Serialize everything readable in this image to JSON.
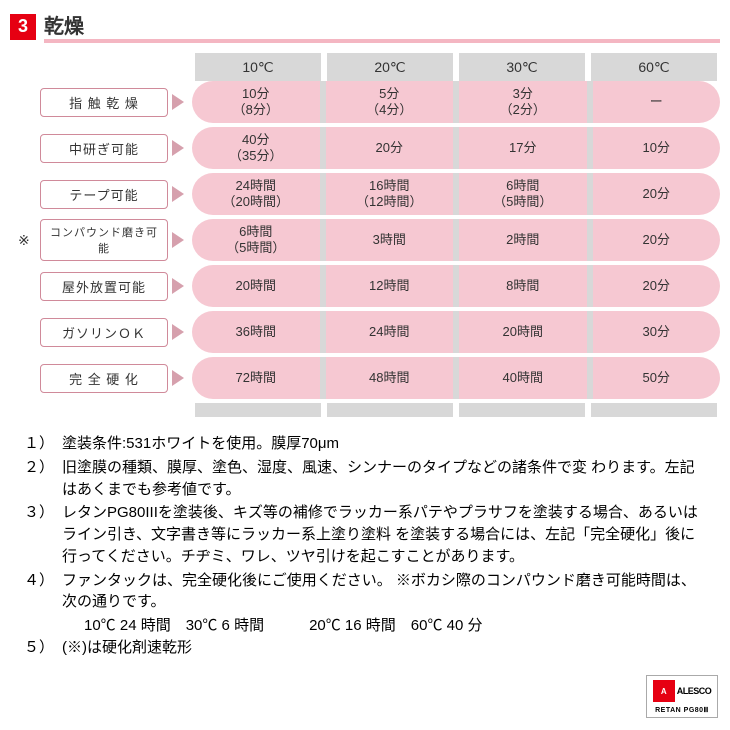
{
  "header": {
    "badge": "3",
    "title": "乾燥",
    "badge_bg": "#e60012",
    "title_underline": "#f4b6c2"
  },
  "table": {
    "columns": [
      "10℃",
      "20℃",
      "30℃",
      "60℃"
    ],
    "column_bg": "#d8d8d8",
    "row_bg": "#f6c8d2",
    "label_border": "#d08a9a",
    "arrow_color": "#d6a0ad",
    "rows": [
      {
        "label": "指 触 乾 燥",
        "asterisk": false,
        "cells": [
          "10分\n（8分）",
          "5分\n（4分）",
          "3分\n（2分）",
          "ー"
        ]
      },
      {
        "label": "中研ぎ可能",
        "asterisk": false,
        "cells": [
          "40分\n（35分）",
          "20分",
          "17分",
          "10分"
        ]
      },
      {
        "label": "テープ可能",
        "asterisk": false,
        "cells": [
          "24時間\n（20時間）",
          "16時間\n（12時間）",
          "6時間\n（5時間）",
          "20分"
        ]
      },
      {
        "label": "コンパウンド磨き可能",
        "asterisk": true,
        "cells": [
          "6時間\n（5時間）",
          "3時間",
          "2時間",
          "20分"
        ]
      },
      {
        "label": "屋外放置可能",
        "asterisk": false,
        "cells": [
          "20時間",
          "12時間",
          "8時間",
          "20分"
        ]
      },
      {
        "label": "ガソリンＯＫ",
        "asterisk": false,
        "cells": [
          "36時間",
          "24時間",
          "20時間",
          "30分"
        ]
      },
      {
        "label": "完 全 硬 化",
        "asterisk": false,
        "cells": [
          "72時間",
          "48時間",
          "40時間",
          "50分"
        ]
      }
    ]
  },
  "notes": [
    {
      "num": "１）",
      "text": "塗装条件:531ホワイトを使用。膜厚70μm"
    },
    {
      "num": "２）",
      "text": "旧塗膜の種類、膜厚、塗色、湿度、風速、シンナーのタイプなどの諸条件で変 わります。左記はあくまでも参考値です。"
    },
    {
      "num": "３）",
      "text": "レタンPG80IIIを塗装後、キズ等の補修でラッカー系パテやプラサフを塗装する場合、あるいはライン引き、文字書き等にラッカー系上塗り塗料 を塗装する場合には、左記「完全硬化」後に行ってください。チヂミ、ワレ、ツヤ引けを起こすことがあります。"
    },
    {
      "num": "４）",
      "text": "ファンタックは、完全硬化後にご使用ください。 ※ボカシ際のコンパウンド磨き可能時間は、次の通りです。"
    },
    {
      "num": "",
      "text": "",
      "sub": "10℃ 24 時間　30℃ 6 時間　　　20℃ 16 時間　60℃ 40 分"
    },
    {
      "num": "５）",
      "text": "(※)は硬化剤速乾形"
    }
  ],
  "logo": {
    "mark": "A",
    "brand": "ALESCO",
    "product": "RETAN PG80Ⅲ"
  }
}
